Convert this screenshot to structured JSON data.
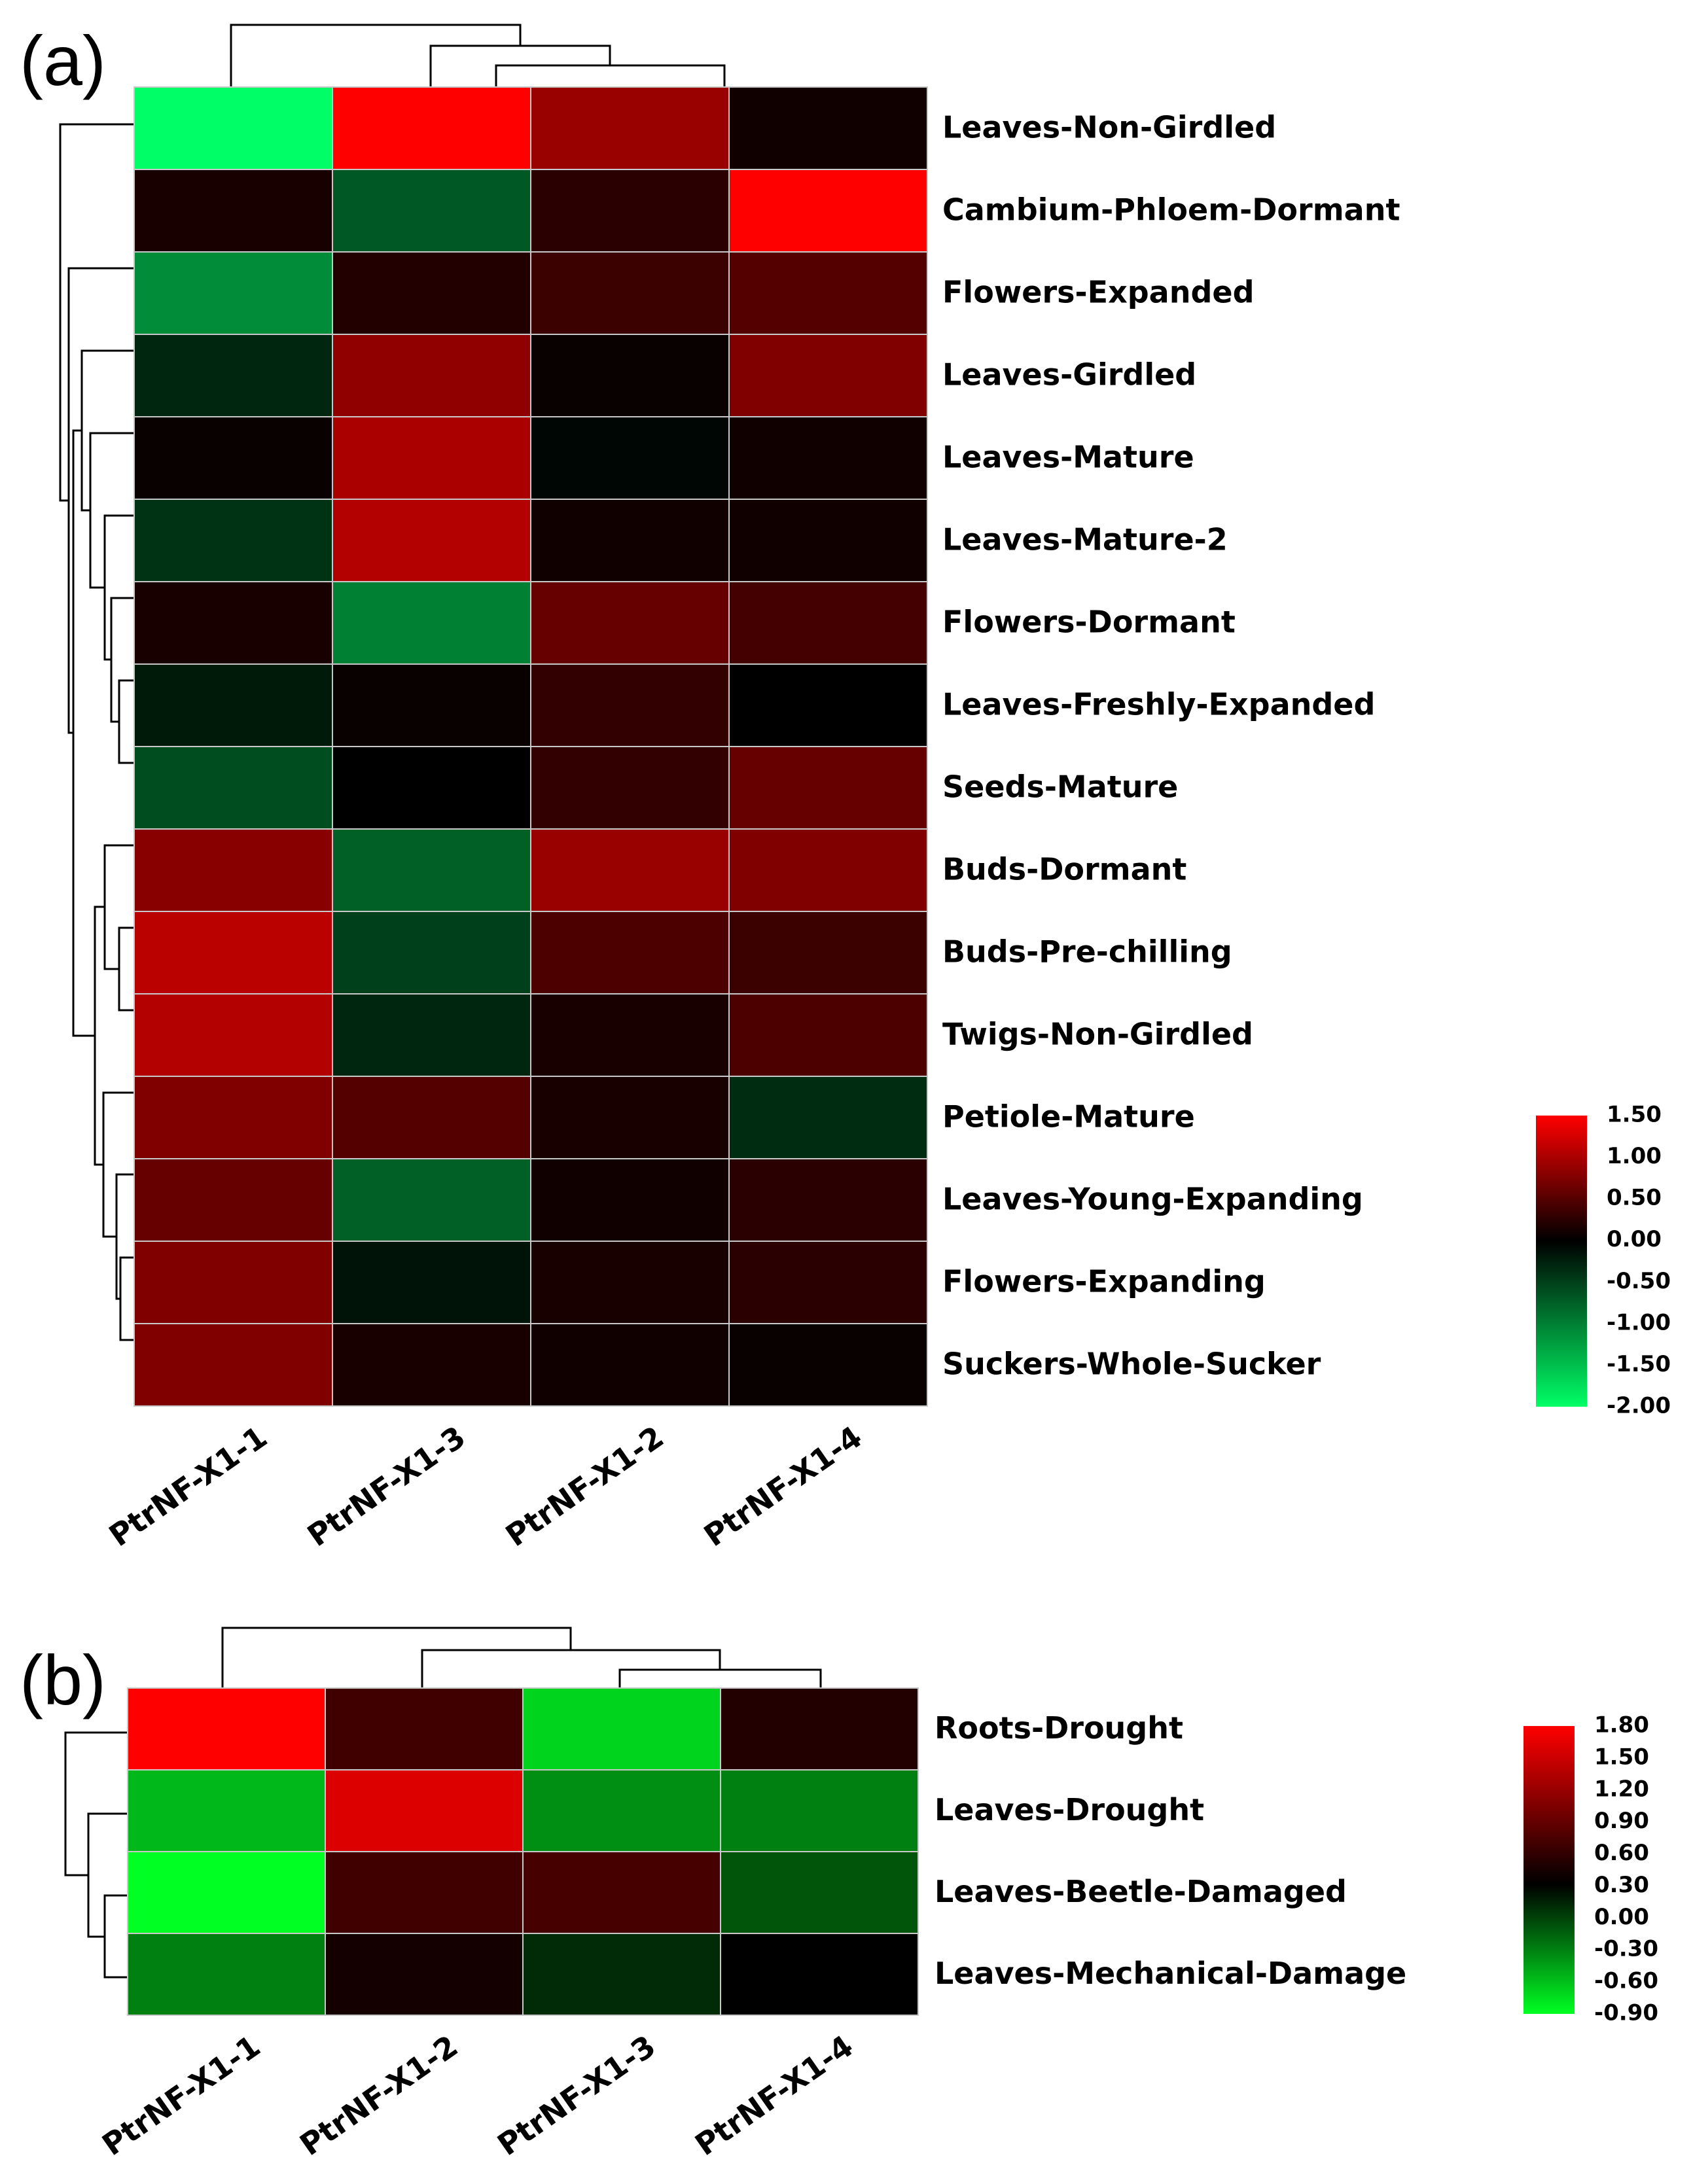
{
  "chart_data": [
    {
      "type": "heatmap",
      "panel": "(a)",
      "columns": [
        "PtrNF-X1-1",
        "PtrNF-X1-3",
        "PtrNF-X1-2",
        "PtrNF-X1-4"
      ],
      "rows": [
        "Leaves-Non-Girdled",
        "Cambium-Phloem-Dormant",
        "Flowers-Expanded",
        "Leaves-Girdled",
        "Leaves-Mature",
        "Leaves-Mature-2",
        "Flowers-Dormant",
        "Leaves-Freshly-Expanded",
        "Seeds-Mature",
        "Buds-Dormant",
        "Buds-Pre-chilling",
        "Twigs-Non-Girdled",
        "Petiole-Mature",
        "Leaves-Young-Expanding",
        "Flowers-Expanding",
        "Suckers-Whole-Sucker"
      ],
      "values": [
        [
          -2.0,
          1.5,
          0.9,
          0.1
        ],
        [
          0.15,
          -0.7,
          0.25,
          1.5
        ],
        [
          -1.1,
          0.2,
          0.35,
          0.5
        ],
        [
          -0.3,
          0.85,
          0.05,
          0.75
        ],
        [
          0.05,
          1.0,
          -0.05,
          0.1
        ],
        [
          -0.4,
          1.05,
          0.1,
          0.1
        ],
        [
          0.15,
          -1.0,
          0.6,
          0.4
        ],
        [
          -0.2,
          0.05,
          0.3,
          0.0
        ],
        [
          -0.6,
          0.0,
          0.3,
          0.6
        ],
        [
          0.8,
          -0.75,
          0.9,
          0.75
        ],
        [
          1.1,
          -0.5,
          0.45,
          0.35
        ],
        [
          1.05,
          -0.3,
          0.15,
          0.45
        ],
        [
          0.75,
          0.5,
          0.15,
          -0.35
        ],
        [
          0.6,
          -0.75,
          0.1,
          0.25
        ],
        [
          0.75,
          -0.15,
          0.15,
          0.25
        ],
        [
          0.75,
          0.15,
          0.1,
          0.05
        ]
      ],
      "colorscale": {
        "low": "#00ff66",
        "mid": "#000000",
        "high": "#ff0000",
        "min": -2.0,
        "max": 1.5
      },
      "legend_ticks": [
        "1.50",
        "1.00",
        "0.50",
        "0.00",
        "-0.50",
        "-1.00",
        "-1.50",
        "-2.00"
      ]
    },
    {
      "type": "heatmap",
      "panel": "(b)",
      "columns": [
        "PtrNF-X1-1",
        "PtrNF-X1-2",
        "PtrNF-X1-3",
        "PtrNF-X1-4"
      ],
      "rows": [
        "Roots-Drought",
        "Leaves-Drought",
        "Leaves-Beetle-Damaged",
        "Leaves-Mechanical-Damage"
      ],
      "values": [
        [
          1.8,
          0.45,
          -0.75,
          0.25
        ],
        [
          -0.65,
          1.55,
          -0.5,
          -0.45
        ],
        [
          -0.9,
          0.45,
          0.5,
          -0.3
        ],
        [
          -0.45,
          0.15,
          -0.15,
          0.0
        ]
      ],
      "colorscale": {
        "low": "#00ff22",
        "mid": "#000000",
        "high": "#ff0000",
        "min": -0.9,
        "max": 1.8
      },
      "legend_ticks": [
        "1.80",
        "1.50",
        "1.20",
        "0.90",
        "0.60",
        "0.30",
        "0.00",
        "-0.30",
        "-0.60",
        "-0.90"
      ]
    }
  ]
}
